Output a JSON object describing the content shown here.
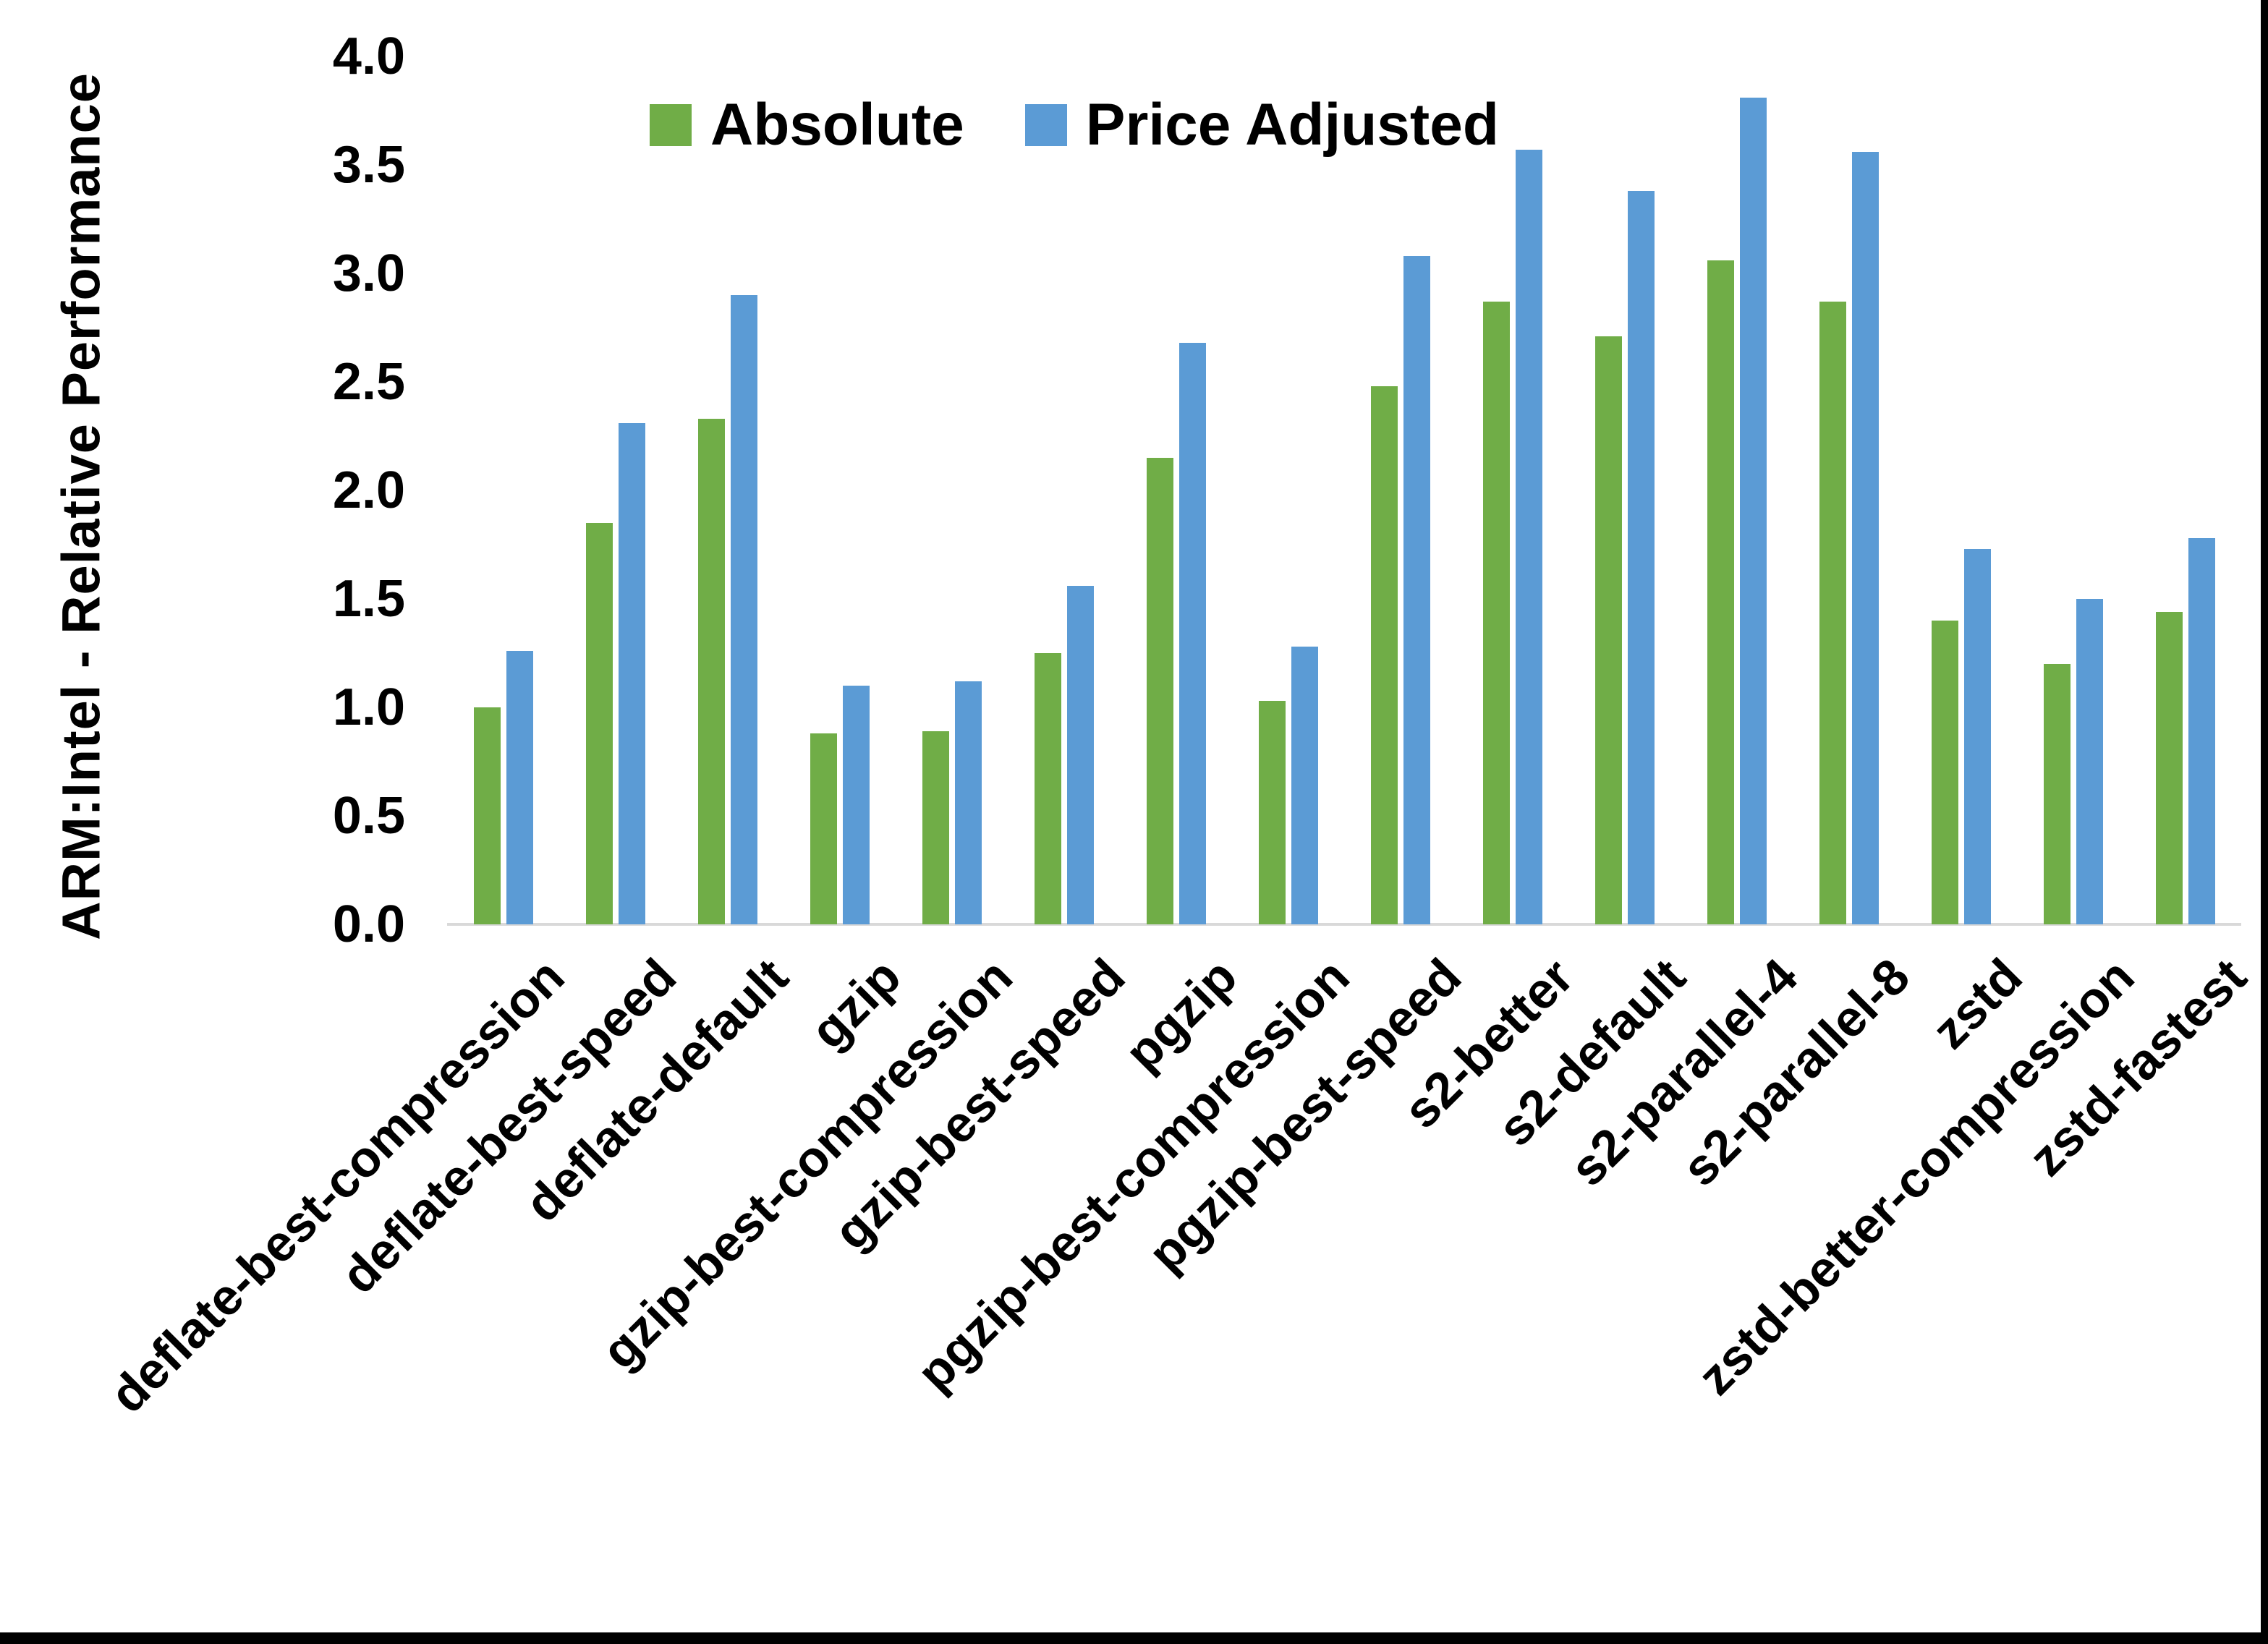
{
  "page": {
    "y_axis_title": "ARM:Intel - Relative Performance"
  },
  "colors": {
    "absolute_green": "#70AD47",
    "price_adjusted_blue": "#5B9BD5",
    "axis_line": "#D9D9D9",
    "border": "#000000",
    "text": "#000000"
  },
  "chart_data": {
    "type": "bar",
    "title": "",
    "xlabel": "",
    "ylabel": "ARM:Intel - Relative Performance",
    "ylim": [
      0.0,
      4.0
    ],
    "y_tick_step": 0.5,
    "y_ticks": [
      "4.0",
      "3.5",
      "3.0",
      "2.5",
      "2.0",
      "1.5",
      "1.0",
      "0.5",
      "0.0"
    ],
    "grid": false,
    "legend_position": "top-center",
    "x_label_rotation_deg": 45,
    "categories": [
      "deflate-best-compression",
      "deflate-best-speed",
      "deflate-default",
      "gzip",
      "gzip-best-compression",
      "gzip-best-speed",
      "pgzip",
      "pgzip-best-compression",
      "pgzip-best-speed",
      "s2-better",
      "s2-default",
      "s2-parallel-4",
      "s2-parallel-8",
      "zstd",
      "zstd-better-compression",
      "zstd-fastest"
    ],
    "series": [
      {
        "name": "Absolute",
        "color": "#70AD47",
        "values": [
          1.0,
          1.85,
          2.33,
          0.88,
          0.89,
          1.25,
          2.15,
          1.03,
          2.48,
          2.87,
          2.71,
          3.06,
          2.87,
          1.4,
          1.2,
          1.44
        ]
      },
      {
        "name": "Price Adjusted",
        "color": "#5B9BD5",
        "values": [
          1.26,
          2.31,
          2.9,
          1.1,
          1.12,
          1.56,
          2.68,
          1.28,
          3.08,
          3.57,
          3.38,
          3.81,
          3.56,
          1.73,
          1.5,
          1.78
        ]
      }
    ]
  }
}
